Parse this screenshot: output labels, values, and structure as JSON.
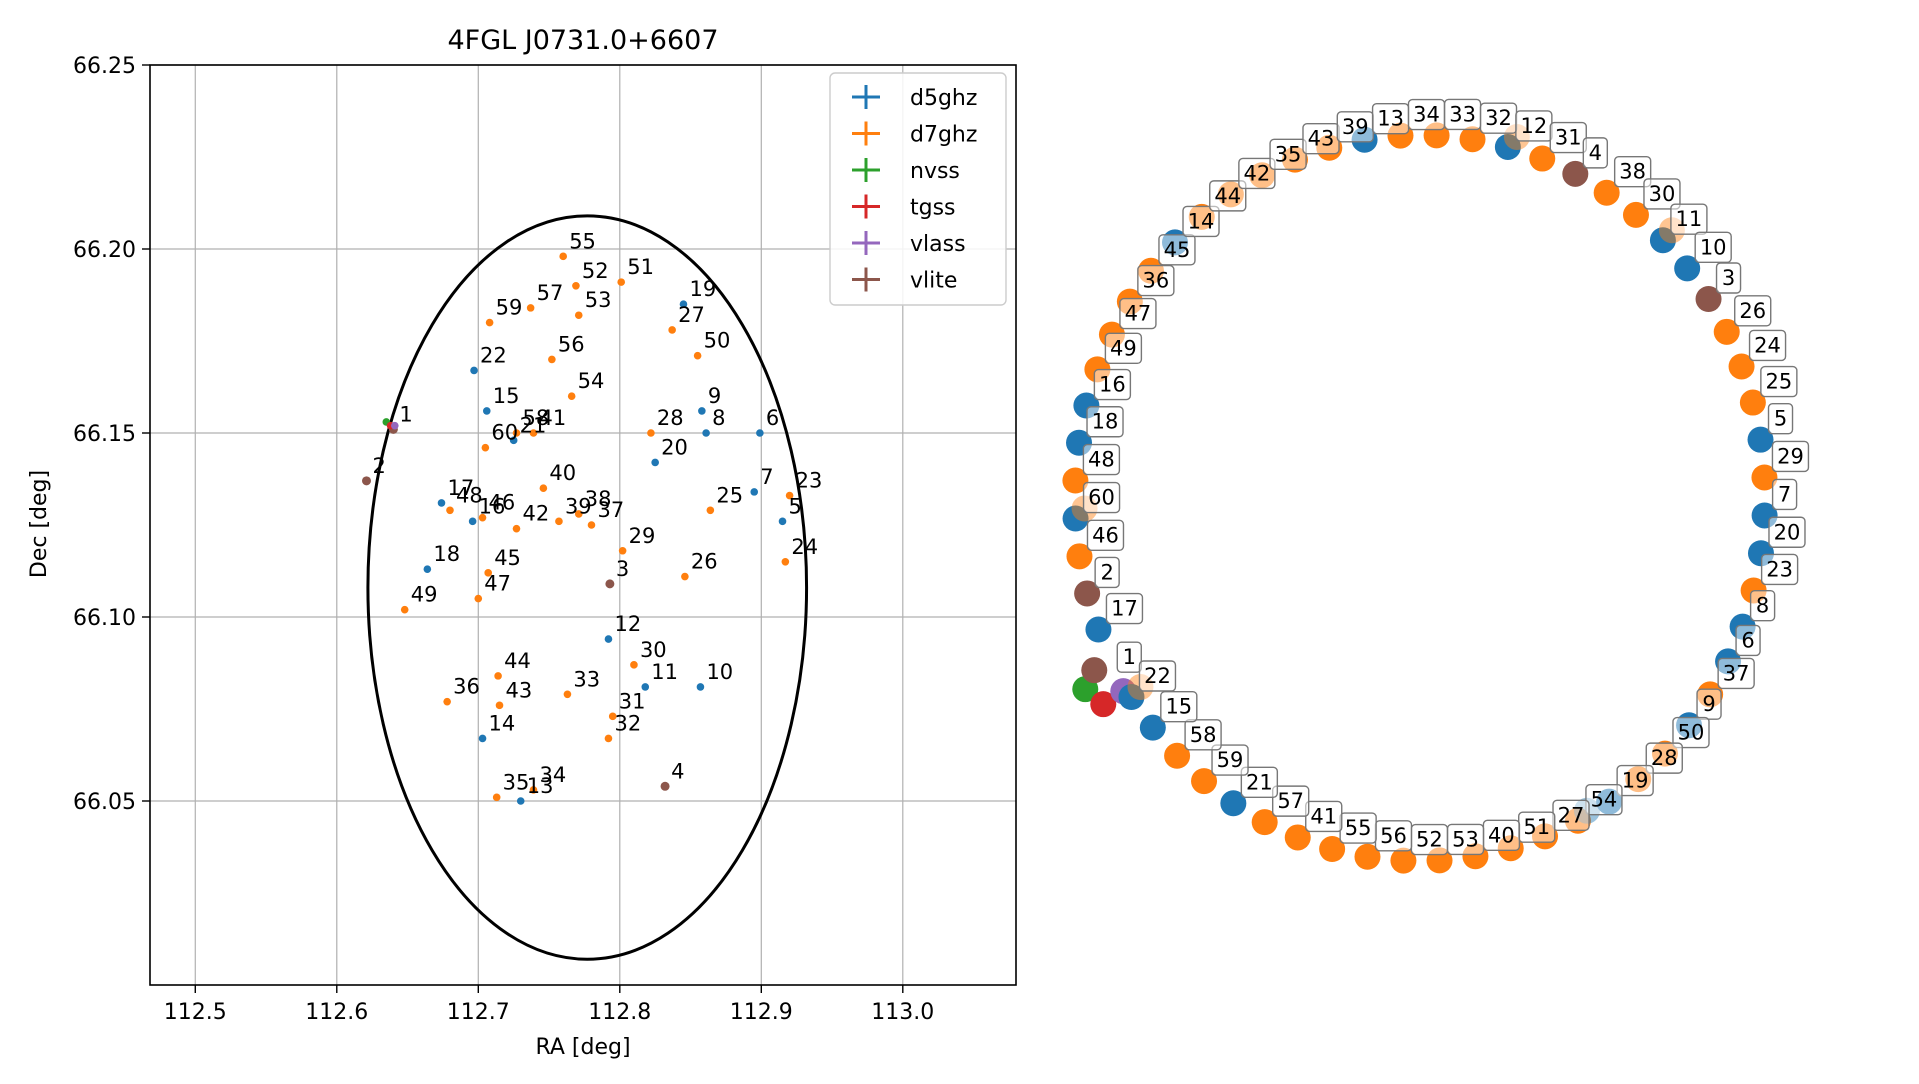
{
  "chart_data": [
    {
      "type": "scatter",
      "title": "4FGL J0731.0+6607",
      "xlabel": "RA [deg]",
      "ylabel": "Dec [deg]",
      "xlim": [
        112.468,
        113.08
      ],
      "ylim": [
        66.0,
        66.25
      ],
      "xticks": [
        "112.5",
        "112.6",
        "112.7",
        "112.8",
        "112.9",
        "113.0"
      ],
      "yticks": [
        "66.05",
        "66.10",
        "66.15",
        "66.20",
        "66.25"
      ],
      "grid": true,
      "legend_position": "upper right",
      "legend": [
        "d5ghz",
        "d7ghz",
        "nvss",
        "tgss",
        "vlass",
        "vlite"
      ],
      "colors": {
        "d5ghz": "#1f77b4",
        "d7ghz": "#ff7f0e",
        "nvss": "#2ca02c",
        "tgss": "#d62728",
        "vlass": "#9467bd",
        "vlite": "#8c564b"
      },
      "ellipse": {
        "center": [
          112.777,
          66.108
        ],
        "semi_axis_ra": 0.155,
        "semi_axis_dec": 0.101
      },
      "points": [
        {
          "label": "1",
          "cat": "vlite",
          "x": 112.64,
          "y": 66.151
        },
        {
          "label": "",
          "cat": "nvss",
          "x": 112.635,
          "y": 66.153
        },
        {
          "label": "",
          "cat": "tgss",
          "x": 112.638,
          "y": 66.152
        },
        {
          "label": "",
          "cat": "vlass",
          "x": 112.641,
          "y": 66.152
        },
        {
          "label": "2",
          "cat": "vlite",
          "x": 112.621,
          "y": 66.137
        },
        {
          "label": "3",
          "cat": "vlite",
          "x": 112.793,
          "y": 66.109
        },
        {
          "label": "4",
          "cat": "vlite",
          "x": 112.832,
          "y": 66.054
        },
        {
          "label": "5",
          "cat": "d5ghz",
          "x": 112.915,
          "y": 66.126
        },
        {
          "label": "6",
          "cat": "d5ghz",
          "x": 112.899,
          "y": 66.15
        },
        {
          "label": "7",
          "cat": "d5ghz",
          "x": 112.895,
          "y": 66.134
        },
        {
          "label": "8",
          "cat": "d5ghz",
          "x": 112.861,
          "y": 66.15
        },
        {
          "label": "9",
          "cat": "d5ghz",
          "x": 112.858,
          "y": 66.156
        },
        {
          "label": "10",
          "cat": "d5ghz",
          "x": 112.857,
          "y": 66.081
        },
        {
          "label": "11",
          "cat": "d5ghz",
          "x": 112.818,
          "y": 66.081
        },
        {
          "label": "12",
          "cat": "d5ghz",
          "x": 112.792,
          "y": 66.094
        },
        {
          "label": "13",
          "cat": "d5ghz",
          "x": 112.73,
          "y": 66.05
        },
        {
          "label": "14",
          "cat": "d5ghz",
          "x": 112.703,
          "y": 66.067
        },
        {
          "label": "15",
          "cat": "d5ghz",
          "x": 112.706,
          "y": 66.156
        },
        {
          "label": "16",
          "cat": "d5ghz",
          "x": 112.696,
          "y": 66.126
        },
        {
          "label": "17",
          "cat": "d5ghz",
          "x": 112.674,
          "y": 66.131
        },
        {
          "label": "18",
          "cat": "d5ghz",
          "x": 112.664,
          "y": 66.113
        },
        {
          "label": "19",
          "cat": "d5ghz",
          "x": 112.845,
          "y": 66.185
        },
        {
          "label": "20",
          "cat": "d5ghz",
          "x": 112.825,
          "y": 66.142
        },
        {
          "label": "21",
          "cat": "d5ghz",
          "x": 112.725,
          "y": 66.148
        },
        {
          "label": "22",
          "cat": "d5ghz",
          "x": 112.697,
          "y": 66.167
        },
        {
          "label": "23",
          "cat": "d7ghz",
          "x": 112.92,
          "y": 66.133
        },
        {
          "label": "24",
          "cat": "d7ghz",
          "x": 112.917,
          "y": 66.115
        },
        {
          "label": "25",
          "cat": "d7ghz",
          "x": 112.864,
          "y": 66.129
        },
        {
          "label": "26",
          "cat": "d7ghz",
          "x": 112.846,
          "y": 66.111
        },
        {
          "label": "27",
          "cat": "d7ghz",
          "x": 112.837,
          "y": 66.178
        },
        {
          "label": "28",
          "cat": "d7ghz",
          "x": 112.822,
          "y": 66.15
        },
        {
          "label": "29",
          "cat": "d7ghz",
          "x": 112.802,
          "y": 66.118
        },
        {
          "label": "30",
          "cat": "d7ghz",
          "x": 112.81,
          "y": 66.087
        },
        {
          "label": "31",
          "cat": "d7ghz",
          "x": 112.795,
          "y": 66.073
        },
        {
          "label": "32",
          "cat": "d7ghz",
          "x": 112.792,
          "y": 66.067
        },
        {
          "label": "33",
          "cat": "d7ghz",
          "x": 112.763,
          "y": 66.079
        },
        {
          "label": "34",
          "cat": "d7ghz",
          "x": 112.739,
          "y": 66.053
        },
        {
          "label": "35",
          "cat": "d7ghz",
          "x": 112.713,
          "y": 66.051
        },
        {
          "label": "36",
          "cat": "d7ghz",
          "x": 112.678,
          "y": 66.077
        },
        {
          "label": "37",
          "cat": "d7ghz",
          "x": 112.78,
          "y": 66.125
        },
        {
          "label": "38",
          "cat": "d7ghz",
          "x": 112.771,
          "y": 66.128
        },
        {
          "label": "39",
          "cat": "d7ghz",
          "x": 112.757,
          "y": 66.126
        },
        {
          "label": "40",
          "cat": "d7ghz",
          "x": 112.746,
          "y": 66.135
        },
        {
          "label": "41",
          "cat": "d7ghz",
          "x": 112.739,
          "y": 66.15
        },
        {
          "label": "42",
          "cat": "d7ghz",
          "x": 112.727,
          "y": 66.124
        },
        {
          "label": "43",
          "cat": "d7ghz",
          "x": 112.715,
          "y": 66.076
        },
        {
          "label": "44",
          "cat": "d7ghz",
          "x": 112.714,
          "y": 66.084
        },
        {
          "label": "45",
          "cat": "d7ghz",
          "x": 112.707,
          "y": 66.112
        },
        {
          "label": "46",
          "cat": "d7ghz",
          "x": 112.703,
          "y": 66.127
        },
        {
          "label": "47",
          "cat": "d7ghz",
          "x": 112.7,
          "y": 66.105
        },
        {
          "label": "48",
          "cat": "d7ghz",
          "x": 112.68,
          "y": 66.129
        },
        {
          "label": "49",
          "cat": "d7ghz",
          "x": 112.648,
          "y": 66.102
        },
        {
          "label": "50",
          "cat": "d7ghz",
          "x": 112.855,
          "y": 66.171
        },
        {
          "label": "51",
          "cat": "d7ghz",
          "x": 112.801,
          "y": 66.191
        },
        {
          "label": "52",
          "cat": "d7ghz",
          "x": 112.769,
          "y": 66.19
        },
        {
          "label": "53",
          "cat": "d7ghz",
          "x": 112.771,
          "y": 66.182
        },
        {
          "label": "54",
          "cat": "d7ghz",
          "x": 112.766,
          "y": 66.16
        },
        {
          "label": "55",
          "cat": "d7ghz",
          "x": 112.76,
          "y": 66.198
        },
        {
          "label": "56",
          "cat": "d7ghz",
          "x": 112.752,
          "y": 66.17
        },
        {
          "label": "57",
          "cat": "d7ghz",
          "x": 112.737,
          "y": 66.184
        },
        {
          "label": "58",
          "cat": "d7ghz",
          "x": 112.727,
          "y": 66.15
        },
        {
          "label": "59",
          "cat": "d7ghz",
          "x": 112.708,
          "y": 66.18
        },
        {
          "label": "60",
          "cat": "d7ghz",
          "x": 112.705,
          "y": 66.146
        }
      ]
    },
    {
      "type": "scatter",
      "title": "",
      "subtype": "label-ring",
      "ring_order": [
        "1",
        "17",
        "2",
        "46",
        "60",
        "48",
        "18",
        "16",
        "49",
        "47",
        "36",
        "45",
        "14",
        "44",
        "42",
        "35",
        "43",
        "39",
        "13",
        "34",
        "33",
        "32",
        "12",
        "31",
        "4",
        "38",
        "30",
        "11",
        "10",
        "3",
        "26",
        "24",
        "25",
        "5",
        "29",
        "7",
        "20",
        "23",
        "8",
        "6",
        "37",
        "9",
        "50",
        "28",
        "19",
        "54",
        "27",
        "51",
        "40",
        "53",
        "52",
        "56",
        "55",
        "41",
        "57",
        "21",
        "59",
        "58",
        "15",
        "22"
      ],
      "overlay_markers": [
        {
          "label": "12",
          "under": "d5ghz",
          "over": "d7ghz"
        },
        {
          "label": "11",
          "under": "d5ghz",
          "over": "d7ghz"
        },
        {
          "label": "22",
          "under": "d5ghz",
          "over": "d7ghz"
        },
        {
          "label": "54",
          "under": "d7ghz",
          "over": "d5ghz"
        },
        {
          "label": "60",
          "under": "d5ghz",
          "over": "d7ghz"
        }
      ]
    }
  ]
}
